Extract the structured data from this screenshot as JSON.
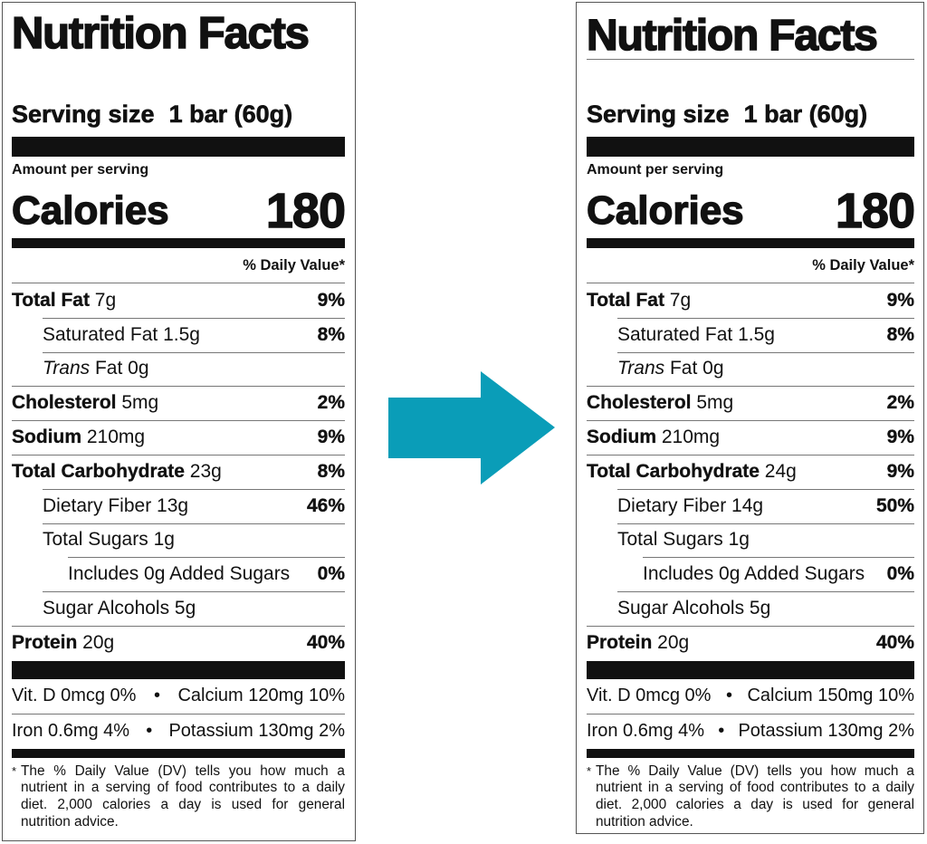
{
  "arrow": {
    "color": "#0a9db8",
    "icon": "right-arrow"
  },
  "labels": [
    {
      "title": "Nutrition Facts",
      "serving_label": "Serving size",
      "serving_value": "1 bar (60g)",
      "amount_per_serving": "Amount per serving",
      "calories_label": "Calories",
      "calories_value": "180",
      "dv_header": "% Daily Value*",
      "nutrients": [
        {
          "name": "Total Fat",
          "amount": " 7g",
          "dv": "9%",
          "bold": true,
          "indent": 0
        },
        {
          "name": "Saturated Fat",
          "amount": " 1.5g",
          "dv": "8%",
          "bold": false,
          "indent": 1
        },
        {
          "italic": "Trans",
          "name": " Fat",
          "amount": " 0g",
          "dv": "",
          "bold": false,
          "indent": 1
        },
        {
          "name": "Cholesterol",
          "amount": " 5mg",
          "dv": "2%",
          "bold": true,
          "indent": 0
        },
        {
          "name": "Sodium",
          "amount": " 210mg",
          "dv": "9%",
          "bold": true,
          "indent": 0
        },
        {
          "name": "Total Carbohydrate",
          "amount": " 23g",
          "dv": "8%",
          "bold": true,
          "indent": 0
        },
        {
          "name": "Dietary Fiber",
          "amount": " 13g",
          "dv": "46%",
          "bold": false,
          "indent": 1
        },
        {
          "name": "Total Sugars",
          "amount": " 1g",
          "dv": "",
          "bold": false,
          "indent": 1
        },
        {
          "name": "Includes 0g Added Sugars",
          "amount": "",
          "dv": "0%",
          "bold": false,
          "indent": 2
        },
        {
          "name": "Sugar Alcohols",
          "amount": " 5g",
          "dv": "",
          "bold": false,
          "indent": 1
        },
        {
          "name": "Protein",
          "amount": " 20g",
          "dv": "40%",
          "bold": true,
          "indent": 0
        }
      ],
      "vitamins": [
        {
          "left": "Vit. D 0mcg 0%",
          "sep": "•",
          "right": "Calcium 120mg 10%"
        },
        {
          "left": "Iron 0.6mg 4%",
          "sep": "•",
          "right": "Potassium 130mg 2%"
        }
      ],
      "footnote_mark": "*",
      "footnote": "The % Daily Value (DV) tells you how much a nutrient in a serving of food contributes to a daily diet. 2,000 calories a day is used for general nutrition advice."
    },
    {
      "title": "Nutrition Facts",
      "serving_label": "Serving size",
      "serving_value": "1 bar (60g)",
      "amount_per_serving": "Amount per serving",
      "calories_label": "Calories",
      "calories_value": "180",
      "dv_header": "% Daily Value*",
      "nutrients": [
        {
          "name": "Total Fat",
          "amount": " 7g",
          "dv": "9%",
          "bold": true,
          "indent": 0
        },
        {
          "name": "Saturated Fat",
          "amount": " 1.5g",
          "dv": "8%",
          "bold": false,
          "indent": 1
        },
        {
          "italic": "Trans",
          "name": " Fat",
          "amount": " 0g",
          "dv": "",
          "bold": false,
          "indent": 1
        },
        {
          "name": "Cholesterol",
          "amount": " 5mg",
          "dv": "2%",
          "bold": true,
          "indent": 0
        },
        {
          "name": "Sodium",
          "amount": " 210mg",
          "dv": "9%",
          "bold": true,
          "indent": 0
        },
        {
          "name": "Total Carbohydrate",
          "amount": " 24g",
          "dv": "9%",
          "bold": true,
          "indent": 0
        },
        {
          "name": "Dietary Fiber",
          "amount": " 14g",
          "dv": "50%",
          "bold": false,
          "indent": 1
        },
        {
          "name": "Total Sugars",
          "amount": " 1g",
          "dv": "",
          "bold": false,
          "indent": 1
        },
        {
          "name": "Includes 0g Added Sugars",
          "amount": "",
          "dv": "0%",
          "bold": false,
          "indent": 2
        },
        {
          "name": "Sugar Alcohols",
          "amount": " 5g",
          "dv": "",
          "bold": false,
          "indent": 1
        },
        {
          "name": "Protein",
          "amount": " 20g",
          "dv": "40%",
          "bold": true,
          "indent": 0
        }
      ],
      "vitamins": [
        {
          "left": "Vit. D 0mcg 0%",
          "sep": "•",
          "right": "Calcium 150mg 10%"
        },
        {
          "left": "Iron 0.6mg 4%",
          "sep": "•",
          "right": "Potassium 130mg 2%"
        }
      ],
      "footnote_mark": "*",
      "footnote": "The % Daily Value (DV) tells you how much a nutrient in a serving of food contributes to a daily diet. 2,000 calories a day is used for general nutrition advice."
    }
  ]
}
